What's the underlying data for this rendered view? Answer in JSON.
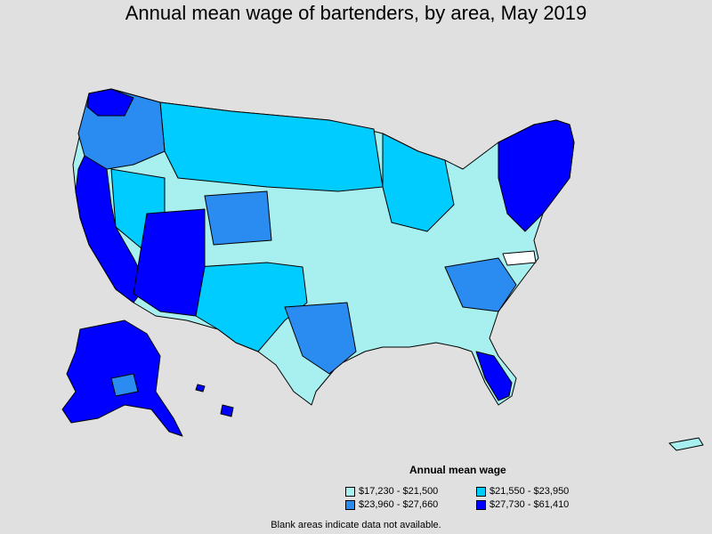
{
  "title": "Annual mean wage of bartenders, by area, May 2019",
  "legend": {
    "title": "Annual mean wage",
    "items": [
      {
        "label": "$17,230 - $21,500",
        "color": "#a8f0f0"
      },
      {
        "label": "$21,550 - $23,950",
        "color": "#00ccff"
      },
      {
        "label": "$23,960 - $27,660",
        "color": "#2a8cf0"
      },
      {
        "label": "$27,730 - $61,410",
        "color": "#0000ff"
      }
    ]
  },
  "note": "Blank areas indicate data not available."
}
